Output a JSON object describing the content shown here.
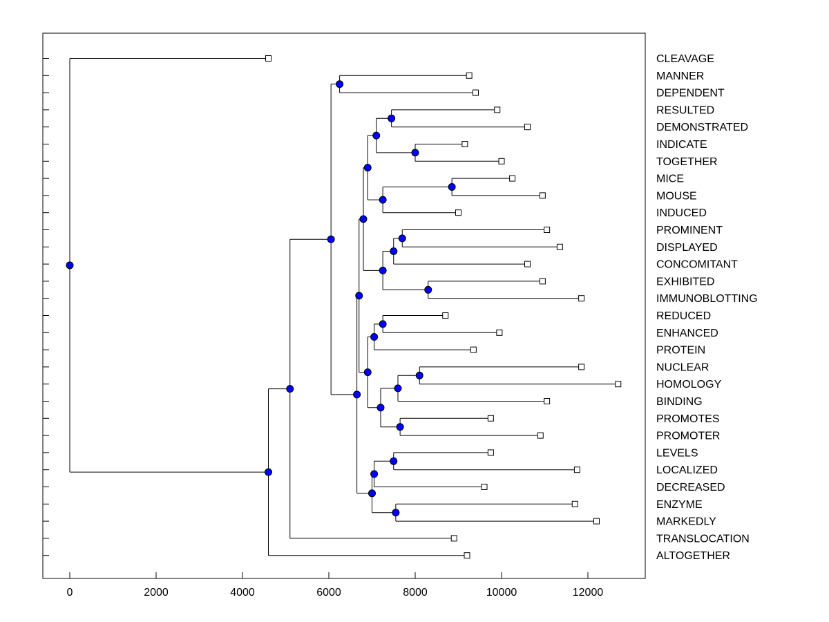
{
  "chart_data": {
    "type": "dendrogram",
    "title": "",
    "xlabel": "",
    "ylabel": "",
    "xlim": [
      -600,
      13400
    ],
    "xticks": [
      0,
      2000,
      4000,
      6000,
      8000,
      10000,
      12000
    ],
    "xtick_labels": [
      "0",
      "2000",
      "4000",
      "6000",
      "8000",
      "10000",
      "12000"
    ],
    "colors": {
      "node": "#0000ff",
      "leaf": "#ffffff",
      "line": "#000000"
    },
    "leaves": [
      {
        "label": "CLEAVAGE",
        "value": 4600
      },
      {
        "label": "MANNER",
        "value": 9250
      },
      {
        "label": "DEPENDENT",
        "value": 9400
      },
      {
        "label": "RESULTED",
        "value": 9900
      },
      {
        "label": "DEMONSTRATED",
        "value": 10600
      },
      {
        "label": "INDICATE",
        "value": 9150
      },
      {
        "label": "TOGETHER",
        "value": 10000
      },
      {
        "label": "MICE",
        "value": 10250
      },
      {
        "label": "MOUSE",
        "value": 10950
      },
      {
        "label": "INDUCED",
        "value": 9000
      },
      {
        "label": "PROMINENT",
        "value": 11050
      },
      {
        "label": "DISPLAYED",
        "value": 11350
      },
      {
        "label": "CONCOMITANT",
        "value": 10600
      },
      {
        "label": "EXHIBITED",
        "value": 10950
      },
      {
        "label": "IMMUNOBLOTTING",
        "value": 11850
      },
      {
        "label": "REDUCED",
        "value": 8700
      },
      {
        "label": "ENHANCED",
        "value": 9950
      },
      {
        "label": "PROTEIN",
        "value": 9350
      },
      {
        "label": "NUCLEAR",
        "value": 11850
      },
      {
        "label": "HOMOLOGY",
        "value": 12700
      },
      {
        "label": "BINDING",
        "value": 11050
      },
      {
        "label": "PROMOTES",
        "value": 9750
      },
      {
        "label": "PROMOTER",
        "value": 10900
      },
      {
        "label": "LEVELS",
        "value": 9750
      },
      {
        "label": "LOCALIZED",
        "value": 11750
      },
      {
        "label": "DECREASED",
        "value": 9600
      },
      {
        "label": "ENZYME",
        "value": 11700
      },
      {
        "label": "MARKEDLY",
        "value": 12200
      },
      {
        "label": "TRANSLOCATION",
        "value": 8900
      },
      {
        "label": "ALTOGETHER",
        "value": 9200
      }
    ],
    "merges": [
      {
        "id": "n1",
        "value": 6250,
        "children": [
          "MANNER",
          "DEPENDENT"
        ]
      },
      {
        "id": "n2",
        "value": 7450,
        "children": [
          "RESULTED",
          "DEMONSTRATED"
        ]
      },
      {
        "id": "n3",
        "value": 8000,
        "children": [
          "INDICATE",
          "TOGETHER"
        ]
      },
      {
        "id": "n4",
        "value": 7100,
        "children": [
          "n2",
          "n3"
        ]
      },
      {
        "id": "n5",
        "value": 8850,
        "children": [
          "MICE",
          "MOUSE"
        ]
      },
      {
        "id": "n6",
        "value": 7250,
        "children": [
          "n5",
          "INDUCED"
        ]
      },
      {
        "id": "n7",
        "value": 6900,
        "children": [
          "n4",
          "n6"
        ]
      },
      {
        "id": "n8",
        "value": 7700,
        "children": [
          "PROMINENT",
          "DISPLAYED"
        ]
      },
      {
        "id": "n9",
        "value": 7500,
        "children": [
          "n8",
          "CONCOMITANT"
        ]
      },
      {
        "id": "n10",
        "value": 8300,
        "children": [
          "EXHIBITED",
          "IMMUNOBLOTTING"
        ]
      },
      {
        "id": "n11",
        "value": 7250,
        "children": [
          "n9",
          "n10"
        ]
      },
      {
        "id": "n12",
        "value": 6800,
        "children": [
          "n7",
          "n11"
        ]
      },
      {
        "id": "n13",
        "value": 7250,
        "children": [
          "REDUCED",
          "ENHANCED"
        ]
      },
      {
        "id": "n14",
        "value": 7050,
        "children": [
          "n13",
          "PROTEIN"
        ]
      },
      {
        "id": "n15",
        "value": 8100,
        "children": [
          "NUCLEAR",
          "HOMOLOGY"
        ]
      },
      {
        "id": "n16",
        "value": 7600,
        "children": [
          "n15",
          "BINDING"
        ]
      },
      {
        "id": "n17",
        "value": 7650,
        "children": [
          "PROMOTES",
          "PROMOTER"
        ]
      },
      {
        "id": "n18",
        "value": 7200,
        "children": [
          "n16",
          "n17"
        ]
      },
      {
        "id": "n19",
        "value": 6900,
        "children": [
          "n14",
          "n18"
        ]
      },
      {
        "id": "n20",
        "value": 6700,
        "children": [
          "n12",
          "n19"
        ]
      },
      {
        "id": "n21",
        "value": 7500,
        "children": [
          "LEVELS",
          "LOCALIZED"
        ]
      },
      {
        "id": "n22",
        "value": 7050,
        "children": [
          "n21",
          "DECREASED"
        ]
      },
      {
        "id": "n23",
        "value": 7550,
        "children": [
          "ENZYME",
          "MARKEDLY"
        ]
      },
      {
        "id": "n24",
        "value": 7000,
        "children": [
          "n22",
          "n23"
        ]
      },
      {
        "id": "n25",
        "value": 6650,
        "children": [
          "n20",
          "n24"
        ]
      },
      {
        "id": "n26",
        "value": 6050,
        "children": [
          "n1",
          "n25"
        ]
      },
      {
        "id": "n27",
        "value": 5100,
        "children": [
          "n26",
          "TRANSLOCATION"
        ]
      },
      {
        "id": "n28",
        "value": 4600,
        "children": [
          "n27",
          "ALTOGETHER"
        ]
      },
      {
        "id": "n29",
        "value": 0,
        "children": [
          "CLEAVAGE",
          "n28"
        ]
      }
    ]
  }
}
